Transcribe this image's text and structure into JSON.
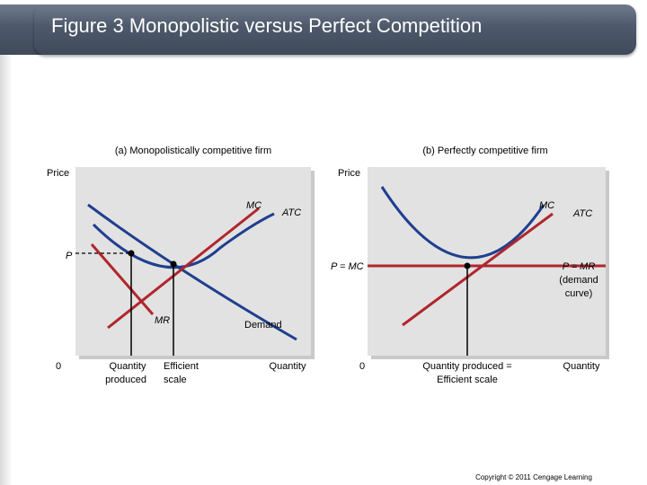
{
  "title": "Figure 3 Monopolistic versus Perfect Competition",
  "panel_a": {
    "heading": "(a) Monopolistically competitive firm",
    "y_axis": "Price",
    "x_axis": "Quantity",
    "origin": "0",
    "price_label": "P",
    "mc_label": "MC",
    "atc_label": "ATC",
    "mr_label": "MR",
    "demand_label": "Demand",
    "qty_produced_line1": "Quantity",
    "qty_produced_line2": "produced",
    "efficient_line1": "Efficient",
    "efficient_line2": "scale"
  },
  "panel_b": {
    "heading": "(b) Perfectly competitive firm",
    "y_axis": "Price",
    "x_axis": "Quantity",
    "origin": "0",
    "price_mc_label": "P = MC",
    "mc_label": "MC",
    "atc_label": "ATC",
    "pmr_line1": "P = MR",
    "pmr_line2": "(demand",
    "pmr_line3": "curve)",
    "qty_line1": "Quantity produced =",
    "qty_line2": "Efficient scale"
  },
  "copyright": "Copyright © 2011 Cengage Learning",
  "colors": {
    "mc": "#b0262d",
    "atc": "#1f3f8f",
    "demand": "#1f3f8f",
    "title_bg": "#4d596a"
  }
}
